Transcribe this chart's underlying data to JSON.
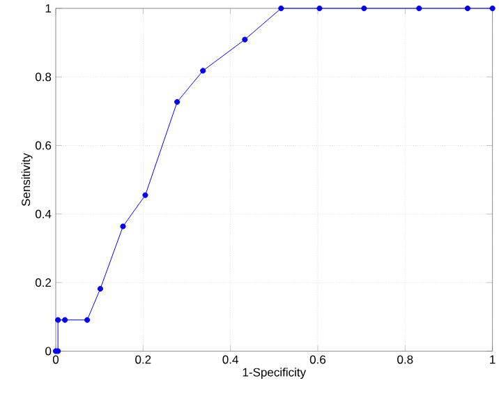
{
  "chart_data": {
    "type": "line",
    "xlabel": "1-Specificity",
    "ylabel": "Sensitivity",
    "xlim": [
      0,
      1
    ],
    "ylim": [
      0,
      1
    ],
    "xticks": [
      0,
      0.2,
      0.4,
      0.6,
      0.8,
      1
    ],
    "yticks": [
      0,
      0.2,
      0.4,
      0.6,
      0.8,
      1
    ],
    "grid": true,
    "marker": "circle",
    "line_style": "solid",
    "series": [
      {
        "color": "#0000ff",
        "x": [
          0,
          0.005,
          0.005,
          0.021,
          0.072,
          0.102,
          0.154,
          0.205,
          0.278,
          0.337,
          0.433,
          0.516,
          0.604,
          0.706,
          0.832,
          0.943,
          1.0
        ],
        "values": [
          0,
          0,
          0.091,
          0.091,
          0.091,
          0.182,
          0.364,
          0.455,
          0.727,
          0.818,
          0.909,
          1,
          1,
          1,
          1,
          1,
          1
        ]
      }
    ]
  }
}
